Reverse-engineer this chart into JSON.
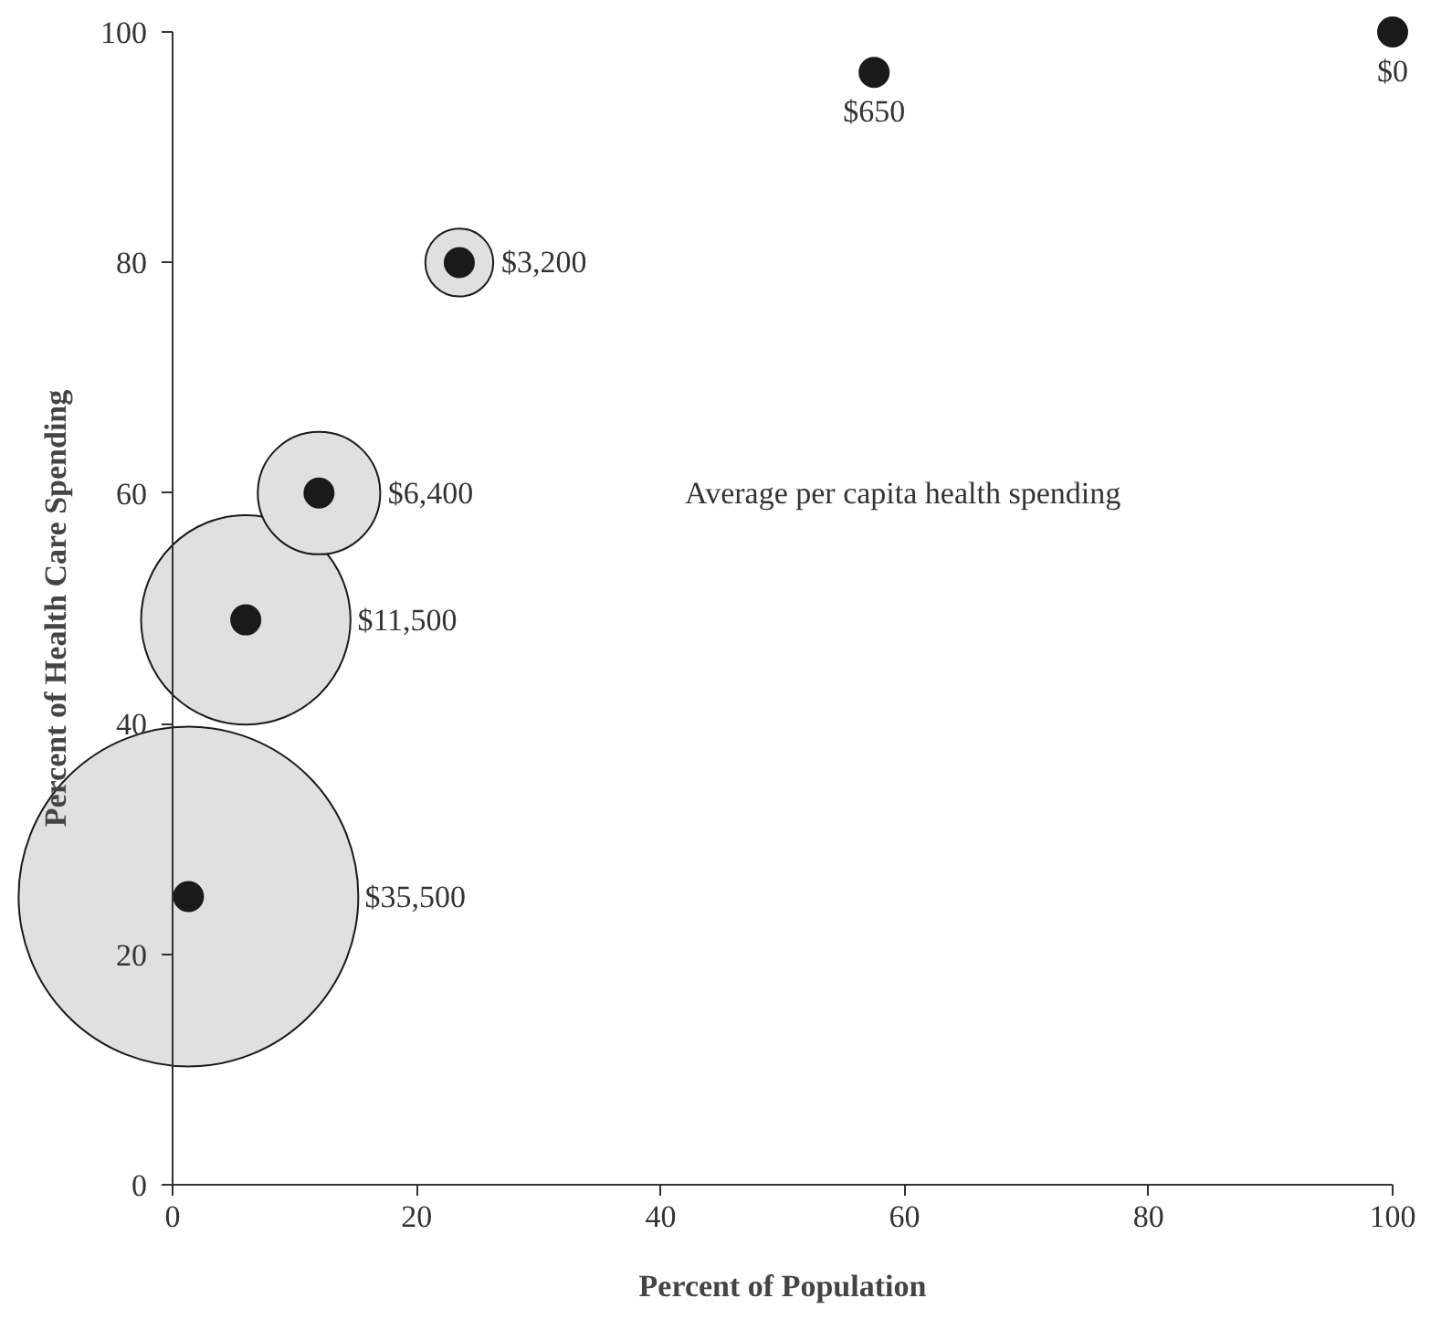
{
  "chart_data": {
    "type": "bubble",
    "xlabel": "Percent of Population",
    "ylabel": "Percent of Health Care Spending",
    "xlim": [
      0,
      100
    ],
    "ylim": [
      0,
      100
    ],
    "xticks": [
      0,
      20,
      40,
      60,
      80,
      100
    ],
    "yticks": [
      0,
      20,
      40,
      60,
      80,
      100
    ],
    "grid": false,
    "annotations": [
      "Average per capita health spending",
      {
        "text": "$35,500",
        "x": 15,
        "y": 25
      },
      {
        "text": "$11,500",
        "x": 14.4,
        "y": 49
      },
      {
        "text": "$6,400",
        "x": 16.9,
        "y": 60
      },
      {
        "text": "$3,200",
        "x": 26.2,
        "y": 80
      },
      {
        "text": "$650",
        "x": 57.5,
        "y": 96.5
      },
      {
        "text": "$0",
        "x": 100,
        "y": 100
      }
    ],
    "series": [
      {
        "color": "#e0e0e0",
        "x": [
          1.3,
          6,
          12,
          23.5
        ],
        "values": [
          25,
          49,
          60,
          80
        ],
        "sizes": [
          1,
          0.38,
          0.13,
          0.04
        ]
      },
      {
        "type": "scatter",
        "color": "#1a1a1a",
        "marker": "circle",
        "x": [
          1.3,
          6,
          12,
          23.5,
          57.5,
          100
        ],
        "values": [
          25,
          49,
          60,
          80,
          96.5,
          100
        ]
      }
    ]
  }
}
